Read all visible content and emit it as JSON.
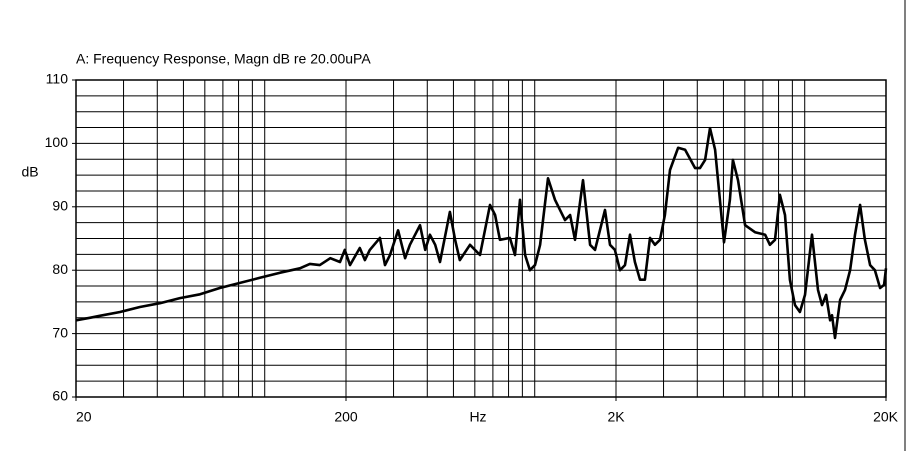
{
  "chart_data": {
    "type": "line",
    "title": "A: Frequency Response, Magn dB re 20.00uPA",
    "x_label": "Hz",
    "y_label": "dB",
    "x_scale": "log",
    "grid": true,
    "xlim": [
      20,
      20000
    ],
    "ylim": [
      60,
      110
    ],
    "xticks": [
      20,
      200,
      {
        "value": 2000,
        "label": "2K"
      },
      {
        "value": 20000,
        "label": "20K"
      }
    ],
    "yticks": [
      60,
      70,
      80,
      90,
      100,
      110
    ],
    "xgrid": [
      20,
      30,
      40,
      50,
      60,
      70,
      80,
      90,
      100,
      200,
      300,
      400,
      500,
      600,
      700,
      800,
      900,
      1000,
      2000,
      3000,
      4000,
      5000,
      6000,
      7000,
      8000,
      9000,
      10000,
      20000
    ],
    "ygrid": [
      60,
      62.5,
      65,
      67.5,
      70,
      72.5,
      75,
      77.5,
      80,
      82.5,
      85,
      87.5,
      90,
      92.5,
      95,
      97.5,
      100,
      102.5,
      105,
      107.5,
      110
    ],
    "x": [
      20,
      22.5,
      24.5,
      29.1,
      34.5,
      40.9,
      48.5,
      57.6,
      68.2,
      81,
      96,
      114,
      135,
      147,
      160,
      175,
      190,
      198,
      207,
      225,
      235,
      245,
      267,
      279,
      291,
      312,
      331,
      345,
      376,
      393,
      409,
      428,
      446,
      485,
      507,
      528,
      576,
      627,
      683,
      713,
      743,
      809,
      845,
      882,
      921,
      960,
      1002,
      1047,
      1120,
      1189,
      1295,
      1352,
      1410,
      1510,
      1604,
      1672,
      1821,
      1901,
      1982,
      2070,
      2159,
      2254,
      2350,
      2454,
      2559,
      2673,
      2787,
      2910,
      3034,
      3170,
      3396,
      3606,
      3927,
      4095,
      4276,
      4457,
      4656,
      4853,
      5024,
      5284,
      5420,
      5662,
      6012,
      6546,
      7130,
      7430,
      7764,
      8093,
      8453,
      8813,
      9206,
      9594,
      10023,
      10642,
      11196,
      11588,
      11995,
      12417,
      12619,
      12942,
      13521,
      14093,
      14723,
      15348,
      16034,
      16711,
      17461,
      18197,
      19011,
      19679,
      20000
    ],
    "series": [
      {
        "color": "#000000",
        "values": [
          72.1,
          72.5,
          72.8,
          73.4,
          74.2,
          74.8,
          75.6,
          76.2,
          77.2,
          78.0,
          78.8,
          79.6,
          80.3,
          81.0,
          80.8,
          81.9,
          81.3,
          83.2,
          80.8,
          83.5,
          81.6,
          83.2,
          85.1,
          80.8,
          82.4,
          86.3,
          81.9,
          84.0,
          87.1,
          83.2,
          85.6,
          84.0,
          81.3,
          89.2,
          84.8,
          81.6,
          84.0,
          82.4,
          90.3,
          88.7,
          84.8,
          85.1,
          82.4,
          91.1,
          82.4,
          80.0,
          80.8,
          84.0,
          94.5,
          91.1,
          87.9,
          88.7,
          84.8,
          94.2,
          84.0,
          83.2,
          89.5,
          84.0,
          83.2,
          80.0,
          80.8,
          85.6,
          81.3,
          78.5,
          78.5,
          85.1,
          84.0,
          84.8,
          88.7,
          95.8,
          99.3,
          99.0,
          96.1,
          96.1,
          97.4,
          102.4,
          99.0,
          91.1,
          84.4,
          91.1,
          97.4,
          94.2,
          87.1,
          86.0,
          85.6,
          84.0,
          84.8,
          91.9,
          88.7,
          78.5,
          74.5,
          73.4,
          76.1,
          85.6,
          76.9,
          74.5,
          76.1,
          72.1,
          72.9,
          69.3,
          75.3,
          76.9,
          80.0,
          85.6,
          90.3,
          84.8,
          80.8,
          80.0,
          77.2,
          77.7,
          80.3
        ]
      }
    ]
  }
}
